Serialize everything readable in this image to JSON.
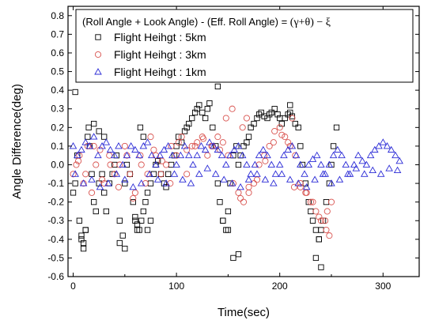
{
  "chart_data": {
    "type": "scatter",
    "title": "",
    "legend_title": "(Roll Angle + Look Angle) - (Eff. Roll Angle) = ",
    "legend_formula": "(γ+θ) − ξ",
    "legend_position": "top-right",
    "xlabel": "Time(sec)",
    "ylabel": "Angle Difference(deg)",
    "xlim": [
      -5,
      335
    ],
    "ylim": [
      -0.6,
      0.85
    ],
    "xticks": [
      0,
      100,
      200,
      300
    ],
    "yticks": [
      -0.6,
      -0.5,
      -0.4,
      -0.3,
      -0.2,
      -0.1,
      0.0,
      0.1,
      0.2,
      0.3,
      0.4,
      0.5,
      0.6,
      0.7,
      0.8
    ],
    "ytick_labels": [
      "-0.6",
      "-0.5",
      "-0.4",
      "-0.3",
      "-0.2",
      "-0.1",
      "0.0",
      "0.1",
      "0.2",
      "0.3",
      "0.4",
      "0.5",
      "0.6",
      "0.7",
      "0.8"
    ],
    "grid": false,
    "series": [
      {
        "name": "Flight Heihgt : 5km",
        "marker": "square",
        "color": "#000000",
        "x": [
          0,
          2,
          4,
          6,
          8,
          10,
          12,
          14,
          16,
          18,
          20,
          22,
          25,
          28,
          30,
          32,
          35,
          38,
          40,
          42,
          45,
          48,
          50,
          52,
          55,
          58,
          60,
          62,
          64,
          66,
          68,
          70,
          72,
          75,
          78,
          80,
          82,
          85,
          88,
          90,
          92,
          95,
          98,
          100,
          102,
          105,
          108,
          110,
          112,
          115,
          118,
          120,
          122,
          125,
          128,
          130,
          132,
          135,
          138,
          140,
          142,
          145,
          148,
          150,
          152,
          155,
          158,
          160,
          162,
          165,
          168,
          170,
          172,
          175,
          178,
          180,
          182,
          185,
          188,
          190,
          192,
          195,
          198,
          200,
          202,
          205,
          208,
          210,
          212,
          215,
          218,
          220,
          222,
          225,
          228,
          230,
          232,
          235,
          238,
          240,
          242,
          245,
          248,
          250,
          252,
          255,
          8,
          10,
          12,
          15,
          20,
          25,
          30,
          60,
          62,
          65,
          68,
          72,
          75,
          140,
          145,
          150,
          155,
          2,
          160,
          210,
          240,
          235,
          238,
          45,
          50
        ],
        "y": [
          -0.15,
          -0.1,
          0.05,
          -0.3,
          -0.4,
          -0.42,
          -0.35,
          0.15,
          0.1,
          -0.05,
          -0.2,
          -0.25,
          -0.1,
          -0.05,
          -0.15,
          -0.25,
          -0.1,
          -0.05,
          0.0,
          0.05,
          -0.3,
          -0.38,
          -0.1,
          0.0,
          -0.05,
          -0.2,
          -0.28,
          -0.32,
          -0.35,
          -0.3,
          -0.25,
          -0.2,
          -0.15,
          -0.1,
          -0.05,
          0.0,
          0.02,
          -0.05,
          -0.1,
          -0.12,
          -0.05,
          0.0,
          0.05,
          0.1,
          0.15,
          0.12,
          0.18,
          0.2,
          0.22,
          0.25,
          0.28,
          0.3,
          0.32,
          0.28,
          0.25,
          0.3,
          0.33,
          0.2,
          0.1,
          -0.1,
          -0.2,
          -0.3,
          -0.35,
          -0.25,
          -0.1,
          0.05,
          0.1,
          0.0,
          0.05,
          0.1,
          0.12,
          0.15,
          0.2,
          0.22,
          0.25,
          0.27,
          0.28,
          0.26,
          0.25,
          0.27,
          0.28,
          0.3,
          0.27,
          0.25,
          0.22,
          0.25,
          0.27,
          0.28,
          0.26,
          0.22,
          0.2,
          0.1,
          0.0,
          -0.1,
          -0.2,
          -0.25,
          -0.3,
          -0.35,
          -0.4,
          -0.35,
          -0.3,
          -0.2,
          -0.1,
          0.0,
          0.1,
          0.2,
          -0.38,
          -0.45,
          -0.35,
          0.2,
          0.22,
          0.18,
          0.15,
          -0.3,
          -0.35,
          0.2,
          0.15,
          -0.35,
          -0.3,
          0.42,
          -0.3,
          -0.35,
          -0.5,
          0.39,
          -0.48,
          0.32,
          -0.55,
          -0.5,
          -0.4,
          -0.42,
          -0.45
        ]
      },
      {
        "name": "Flight Heihgt : 3km",
        "marker": "circle",
        "color": "#d9534f",
        "x": [
          0,
          3,
          6,
          10,
          14,
          18,
          22,
          26,
          30,
          35,
          40,
          45,
          50,
          55,
          60,
          65,
          70,
          75,
          80,
          85,
          90,
          95,
          100,
          105,
          110,
          115,
          120,
          125,
          130,
          135,
          140,
          145,
          150,
          155,
          160,
          165,
          170,
          175,
          180,
          185,
          190,
          195,
          200,
          205,
          210,
          215,
          220,
          225,
          230,
          235,
          240,
          245,
          248,
          250,
          5,
          12,
          20,
          28,
          36,
          44,
          52,
          58,
          66,
          72,
          78,
          86,
          94,
          102,
          110,
          118,
          126,
          134,
          142,
          148,
          154,
          162,
          170,
          178,
          186,
          194,
          202,
          208,
          214,
          220,
          226,
          232,
          238,
          244,
          246,
          164,
          168,
          212
        ],
        "y": [
          -0.05,
          0.0,
          0.05,
          -0.1,
          0.1,
          -0.15,
          0.0,
          0.08,
          -0.1,
          0.05,
          -0.05,
          0.0,
          0.1,
          -0.05,
          -0.15,
          0.05,
          -0.1,
          0.15,
          0.05,
          -0.05,
          0.0,
          0.1,
          0.05,
          0.15,
          -0.05,
          0.1,
          0.12,
          0.15,
          0.05,
          0.1,
          0.15,
          0.12,
          0.05,
          -0.1,
          -0.15,
          -0.2,
          -0.12,
          -0.1,
          0.0,
          0.05,
          0.1,
          0.18,
          0.2,
          0.15,
          0.1,
          0.05,
          -0.1,
          -0.15,
          -0.2,
          -0.25,
          -0.3,
          -0.35,
          -0.38,
          -0.2,
          0.02,
          -0.05,
          0.1,
          -0.08,
          0.0,
          -0.12,
          0.05,
          -0.18,
          0.0,
          -0.05,
          0.08,
          0.02,
          -0.1,
          0.12,
          0.08,
          0.1,
          0.14,
          0.1,
          0.08,
          0.25,
          0.3,
          -0.18,
          -0.15,
          -0.08,
          0.02,
          0.12,
          0.16,
          0.12,
          -0.12,
          -0.12,
          -0.15,
          -0.2,
          -0.28,
          -0.3,
          -0.25,
          0.2,
          0.25,
          0.25
        ]
      },
      {
        "name": "Flight Heihgt : 1km",
        "marker": "triangle",
        "color": "#2a2ad6",
        "x": [
          0,
          4,
          8,
          12,
          16,
          20,
          24,
          28,
          32,
          36,
          40,
          44,
          48,
          52,
          56,
          60,
          64,
          68,
          72,
          76,
          80,
          84,
          88,
          92,
          96,
          100,
          104,
          108,
          112,
          116,
          120,
          124,
          128,
          132,
          136,
          140,
          144,
          148,
          152,
          156,
          160,
          164,
          168,
          172,
          176,
          180,
          184,
          188,
          192,
          196,
          200,
          204,
          208,
          212,
          216,
          220,
          224,
          228,
          232,
          236,
          240,
          244,
          248,
          252,
          256,
          260,
          264,
          268,
          272,
          276,
          280,
          284,
          288,
          292,
          296,
          300,
          304,
          308,
          312,
          316,
          2,
          10,
          18,
          26,
          34,
          42,
          50,
          58,
          66,
          74,
          82,
          90,
          98,
          106,
          114,
          122,
          130,
          138,
          146,
          154,
          162,
          170,
          178,
          186,
          194,
          202,
          210,
          218,
          226,
          234,
          242,
          250,
          258,
          266,
          274,
          282,
          290,
          298,
          306,
          314
        ],
        "y": [
          0.1,
          0.05,
          0.08,
          0.12,
          0.1,
          0.15,
          0.05,
          0.1,
          0.12,
          0.08,
          0.05,
          0.1,
          0.0,
          0.05,
          0.1,
          0.08,
          0.05,
          0.1,
          0.12,
          0.05,
          0.0,
          0.05,
          0.08,
          0.1,
          0.05,
          0.0,
          0.05,
          0.1,
          0.05,
          0.0,
          0.05,
          0.1,
          0.08,
          0.12,
          0.1,
          0.08,
          0.05,
          0.0,
          0.05,
          0.08,
          0.1,
          0.05,
          0.0,
          -0.05,
          0.0,
          0.05,
          0.08,
          0.05,
          0.0,
          -0.05,
          0.0,
          0.05,
          0.08,
          0.1,
          0.05,
          0.0,
          -0.05,
          0.0,
          0.03,
          0.05,
          0.0,
          -0.05,
          0.0,
          0.05,
          0.08,
          0.05,
          0.0,
          -0.05,
          0.0,
          0.05,
          0.02,
          0.0,
          0.05,
          0.08,
          0.1,
          0.12,
          0.1,
          0.08,
          0.05,
          0.02,
          -0.05,
          -0.1,
          -0.08,
          -0.12,
          -0.1,
          -0.05,
          -0.08,
          -0.12,
          -0.1,
          -0.05,
          -0.08,
          -0.1,
          -0.05,
          -0.08,
          -0.1,
          -0.05,
          -0.02,
          -0.05,
          -0.08,
          -0.1,
          -0.12,
          -0.08,
          -0.05,
          -0.08,
          -0.1,
          -0.05,
          -0.08,
          -0.1,
          -0.12,
          -0.08,
          -0.05,
          -0.1,
          -0.08,
          -0.05,
          -0.02,
          -0.05,
          -0.03,
          -0.05,
          -0.02,
          -0.03
        ]
      }
    ]
  }
}
